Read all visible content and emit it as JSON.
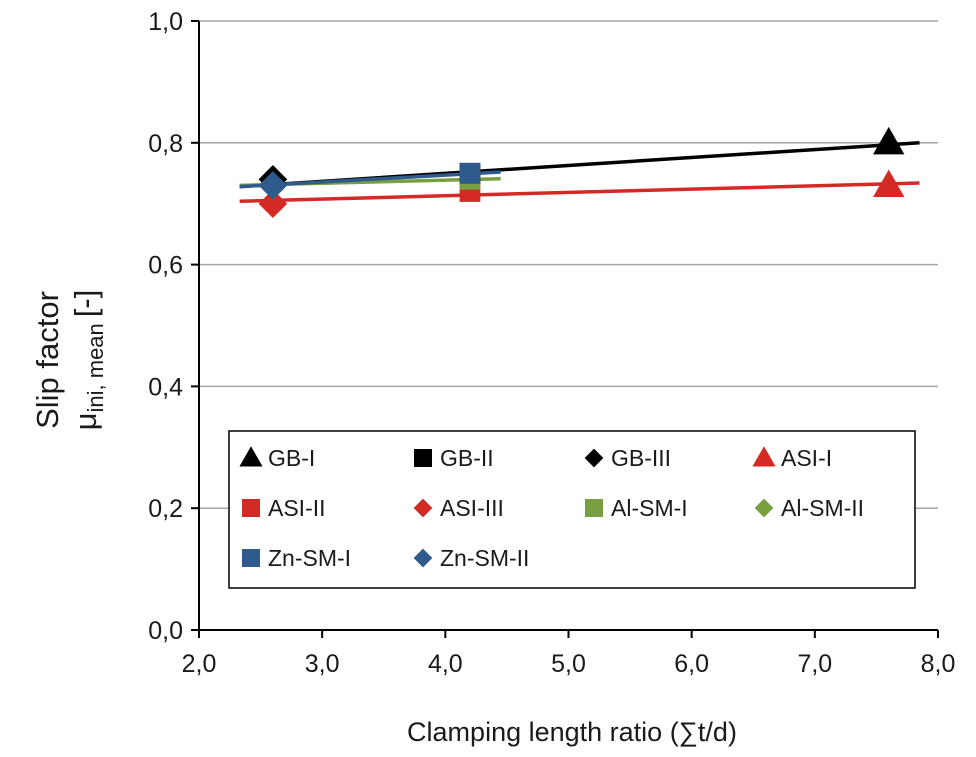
{
  "chart_data": {
    "type": "scatter",
    "title": "",
    "xlabel": "Clamping length ratio (∑t/d)",
    "ylabel": {
      "line1": "Slip factor",
      "line2_main": "μ",
      "line2_sub": "ini, mean",
      "line2_unit": "[-]"
    },
    "xlim": [
      2.0,
      8.0
    ],
    "ylim": [
      0.0,
      1.0
    ],
    "x_ticks": [
      2.0,
      3.0,
      4.0,
      5.0,
      6.0,
      7.0,
      8.0
    ],
    "y_ticks": [
      0.0,
      0.2,
      0.4,
      0.6,
      0.8,
      1.0
    ],
    "x_tick_labels": [
      "2,0",
      "3,0",
      "4,0",
      "5,0",
      "6,0",
      "7,0",
      "8,0"
    ],
    "y_tick_labels": [
      "0,0",
      "0,2",
      "0,4",
      "0,6",
      "0,8",
      "1,0"
    ],
    "grid": "horizontal",
    "legend_position": "inside-bottom",
    "series": [
      {
        "name": "GB-I",
        "marker": "triangle",
        "color": "#000000",
        "points": [
          [
            7.6,
            0.8
          ]
        ]
      },
      {
        "name": "GB-II",
        "marker": "square",
        "color": "#000000",
        "points": [
          [
            4.2,
            0.75
          ]
        ]
      },
      {
        "name": "GB-III",
        "marker": "diamond",
        "color": "#000000",
        "points": [
          [
            2.6,
            0.74
          ]
        ]
      },
      {
        "name": "ASI-I",
        "marker": "triangle",
        "color": "#d42a26",
        "points": [
          [
            7.6,
            0.73
          ]
        ]
      },
      {
        "name": "ASI-II",
        "marker": "square",
        "color": "#d42a26",
        "points": [
          [
            4.2,
            0.72
          ]
        ]
      },
      {
        "name": "ASI-III",
        "marker": "diamond",
        "color": "#d42a26",
        "points": [
          [
            2.6,
            0.7
          ]
        ]
      },
      {
        "name": "Al-SM-I",
        "marker": "square",
        "color": "#78a040",
        "points": [
          [
            4.2,
            0.74
          ]
        ]
      },
      {
        "name": "Al-SM-II",
        "marker": "diamond",
        "color": "#78a040",
        "points": [
          [
            2.6,
            0.73
          ]
        ]
      },
      {
        "name": "Zn-SM-I",
        "marker": "square",
        "color": "#2e5a8c",
        "points": [
          [
            4.2,
            0.75
          ]
        ]
      },
      {
        "name": "Zn-SM-II",
        "marker": "diamond",
        "color": "#2e5a8c",
        "points": [
          [
            2.6,
            0.73
          ]
        ]
      }
    ],
    "trendlines": [
      {
        "group": "GB",
        "color": "#000000",
        "x": [
          2.33,
          7.85
        ],
        "y": [
          0.728,
          0.8
        ]
      },
      {
        "group": "ASI",
        "color": "#d42a26",
        "x": [
          2.33,
          7.85
        ],
        "y": [
          0.704,
          0.734
        ]
      },
      {
        "group": "Al-SM",
        "color": "#78a040",
        "x": [
          2.33,
          4.45
        ],
        "y": [
          0.73,
          0.741
        ]
      },
      {
        "group": "Zn-SM",
        "color": "#2e5a8c",
        "x": [
          2.33,
          4.45
        ],
        "y": [
          0.728,
          0.752
        ]
      }
    ]
  }
}
